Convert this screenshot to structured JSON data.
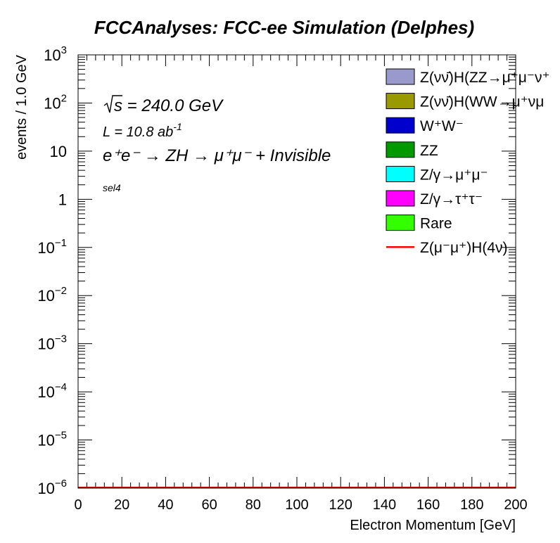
{
  "chart_data": {
    "type": "bar",
    "title": "FCCAnalyses: FCC-ee Simulation (Delphes)",
    "xlabel": "Electron Momentum [GeV]",
    "ylabel": "events / 1.0 GeV",
    "xlim": [
      0,
      200
    ],
    "ylim": [
      1e-06,
      1000
    ],
    "yscale": "log",
    "x_ticks": [
      "0",
      "20",
      "40",
      "60",
      "80",
      "100",
      "120",
      "140",
      "160",
      "180",
      "200"
    ],
    "y_ticks": [
      {
        "base": "10",
        "exp": "−6"
      },
      {
        "base": "10",
        "exp": "−5"
      },
      {
        "base": "10",
        "exp": "−4"
      },
      {
        "base": "10",
        "exp": "−3"
      },
      {
        "base": "10",
        "exp": "−2"
      },
      {
        "base": "10",
        "exp": "−1"
      },
      {
        "base": "1",
        "exp": ""
      },
      {
        "base": "10",
        "exp": ""
      },
      {
        "base": "10",
        "exp": "2"
      },
      {
        "base": "10",
        "exp": "3"
      }
    ],
    "annotations": {
      "sqrt_s": "s = 240.0 GeV",
      "lumi_prefix": "L = 10.8 ab",
      "lumi_exp": "-1",
      "process": "e⁺e⁻ → ZH → μ⁺μ⁻ + Invisible",
      "selection": "sel4"
    },
    "legend_placement": "top-right",
    "legend": [
      {
        "label": "Z(νν̄)H(ZZ→μ⁺μ⁻ν⁺",
        "color": "#9999cc",
        "style": "box"
      },
      {
        "label": "Z(νν̄)H(WW→μ⁺νμ",
        "color": "#999900",
        "style": "box"
      },
      {
        "label": "W⁺W⁻",
        "color": "#0000cc",
        "style": "box"
      },
      {
        "label": "ZZ",
        "color": "#009900",
        "style": "box"
      },
      {
        "label": "Z/γ→μ⁺μ⁻",
        "color": "#00ffff",
        "style": "box"
      },
      {
        "label": "Z/γ→τ⁺τ⁻",
        "color": "#ff00ff",
        "style": "box"
      },
      {
        "label": "Rare",
        "color": "#33ff00",
        "style": "box"
      },
      {
        "label": "Z(μ⁻μ⁺)H(4ν)",
        "color": "#ff0000",
        "style": "line"
      }
    ],
    "series": [
      {
        "values": [
          1e-06,
          1e-06
        ],
        "x": [
          0,
          200
        ],
        "color": "#cc0000"
      }
    ]
  }
}
